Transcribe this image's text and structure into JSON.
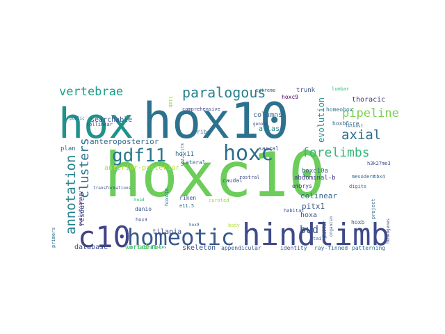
{
  "wordcloud": {
    "words": [
      {
        "text": "hoxc10",
        "color": "#6ccd5a"
      },
      {
        "text": "hox10",
        "color": "#2c728e"
      },
      {
        "text": "hox",
        "color": "#21918c"
      },
      {
        "text": "hindlimb",
        "color": "#3e4a89"
      },
      {
        "text": "c10",
        "color": "#414487"
      },
      {
        "text": "homeotic",
        "color": "#38588c"
      },
      {
        "text": "hoxc",
        "color": "#2e6e8e"
      },
      {
        "text": "gdf11",
        "color": "#2a788e"
      },
      {
        "text": "paralogous",
        "color": "#26828e"
      },
      {
        "text": "vertebrae",
        "color": "#1f9e89"
      },
      {
        "text": "forelimbs",
        "color": "#35b779"
      },
      {
        "text": "annotation",
        "color": "#26828e"
      },
      {
        "text": "clusters",
        "color": "#2c728e"
      },
      {
        "text": "axial",
        "color": "#2e6e8e"
      },
      {
        "text": "pipeline",
        "color": "#7ad151"
      },
      {
        "text": "bud",
        "color": "#3b528b"
      },
      {
        "text": "hoxc9",
        "color": "#440154"
      },
      {
        "text": "trunk",
        "color": "#3b528b"
      },
      {
        "text": "evolution",
        "color": "#21918c"
      },
      {
        "text": "thoracic",
        "color": "#443983"
      },
      {
        "text": "searchable",
        "color": "#3b528b"
      },
      {
        "text": "anteroposterior",
        "color": "#31688e"
      },
      {
        "text": "anterior-posterior",
        "color": "#b5de2b"
      },
      {
        "text": "columns",
        "color": "#31688e"
      },
      {
        "text": "homeobox",
        "color": "#2c728e"
      },
      {
        "text": "hoxb6cre",
        "color": "#31688e"
      },
      {
        "text": "atlas",
        "color": "#26828e"
      },
      {
        "text": "resource",
        "color": "#3e4a89"
      },
      {
        "text": "evolutionary",
        "color": "#482677"
      },
      {
        "text": "hox11",
        "color": "#2d708e"
      },
      {
        "text": "pitx1",
        "color": "#38588c"
      },
      {
        "text": "colinear",
        "color": "#31688e"
      },
      {
        "text": "embrys",
        "color": "#414487"
      },
      {
        "text": "hoxa",
        "color": "#3b528b"
      },
      {
        "text": "tilapia",
        "color": "#3e4a89"
      },
      {
        "text": "skeleton",
        "color": "#3b528b"
      },
      {
        "text": "database",
        "color": "#3e4a89"
      },
      {
        "text": "vertebral",
        "color": "#6ccd5a"
      },
      {
        "text": "caudal",
        "color": "#3b528b"
      },
      {
        "text": "abdominal-b",
        "color": "#443983"
      },
      {
        "text": "sacral",
        "color": "#3b528b"
      },
      {
        "text": "ribs",
        "color": "#31688e"
      },
      {
        "text": "plan",
        "color": "#31688e"
      },
      {
        "text": "appendicular",
        "color": "#38588c"
      },
      {
        "text": "identity",
        "color": "#3b528b"
      },
      {
        "text": "ray-finned",
        "color": "#31688e"
      },
      {
        "text": "patterning",
        "color": "#2c728e"
      },
      {
        "text": "vertebral",
        "color": "#35b779"
      },
      {
        "text": "lateral",
        "color": "#31688e"
      },
      {
        "text": "danio",
        "color": "#3b528b"
      },
      {
        "text": "riken",
        "color": "#3e4a89"
      },
      {
        "text": "hoxb",
        "color": "#3b528b"
      },
      {
        "text": "fishes",
        "color": "#21918c"
      },
      {
        "text": "hox3",
        "color": "#3b528b"
      },
      {
        "text": "digits",
        "color": "#31688e"
      },
      {
        "text": "mesoderm",
        "color": "#31688e"
      },
      {
        "text": "comprehensive",
        "color": "#414487"
      },
      {
        "text": "extreme",
        "color": "#31688e"
      },
      {
        "text": "public",
        "color": "#31688e"
      },
      {
        "text": "collinear",
        "color": "#3b528b"
      },
      {
        "text": "h3k27me3",
        "color": "#3e4a89"
      },
      {
        "text": "hoxc10a",
        "color": "#31688e"
      },
      {
        "text": "limb",
        "color": "#a0da39"
      },
      {
        "text": "body",
        "color": "#b5de2b"
      },
      {
        "text": "primers",
        "color": "#2c728e"
      },
      {
        "text": "head",
        "color": "#35b779"
      },
      {
        "text": "hoxd10",
        "color": "#26828e"
      },
      {
        "text": "tail",
        "color": "#31688e"
      },
      {
        "text": "puffer",
        "color": "#3b528b"
      },
      {
        "text": "curated",
        "color": "#a0da39"
      },
      {
        "text": "project",
        "color": "#31688e"
      },
      {
        "text": "teleost",
        "color": "#31688e"
      },
      {
        "text": "killifish",
        "color": "#3b528b"
      },
      {
        "text": "homeogenes",
        "color": "#3e4a89"
      },
      {
        "text": "lumbar",
        "color": "#35b779"
      },
      {
        "text": "tbx4",
        "color": "#31688e"
      },
      {
        "text": "hox9",
        "color": "#31688e"
      },
      {
        "text": "genome",
        "color": "#3e4a89"
      },
      {
        "text": "transformations",
        "color": "#3b528b"
      },
      {
        "text": "habitat",
        "color": "#3b528b"
      },
      {
        "text": "rostral",
        "color": "#3e4a89"
      },
      {
        "text": "e11.5",
        "color": "#31688e"
      },
      {
        "text": "organism",
        "color": "#3b528b"
      }
    ]
  }
}
